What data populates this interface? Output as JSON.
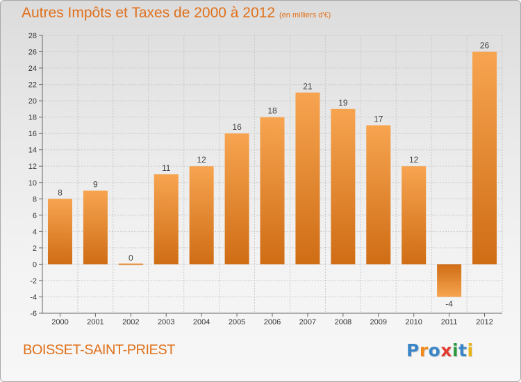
{
  "title": "Autres Impôts et Taxes de 2000 à 2012",
  "subtitle": "(en milliers d'€)",
  "commune": "BOISSET-SAINT-PRIEST",
  "logo_text": "Proxiti",
  "colors": {
    "accent": "#e0701a",
    "bar_light": "#f7a450",
    "bar_dark": "#cf6d15",
    "grid": "#c8c8c8",
    "logo_letters": [
      "#3b86c6",
      "#f08a1c",
      "#3b86c6",
      "#e33b2e",
      "#2c9a3f",
      "#3b86c6",
      "#e8b417"
    ]
  },
  "chart_data": {
    "type": "bar",
    "categories": [
      "2000",
      "2001",
      "2002",
      "2003",
      "2004",
      "2005",
      "2006",
      "2007",
      "2008",
      "2009",
      "2010",
      "2011",
      "2012"
    ],
    "values": [
      8,
      9,
      0,
      11,
      12,
      16,
      18,
      21,
      19,
      17,
      12,
      -4,
      26
    ],
    "value_labels": [
      "8",
      "9",
      "0",
      "11",
      "12",
      "16",
      "18",
      "21",
      "19",
      "17",
      "12",
      "-4",
      "26"
    ],
    "ylim": [
      -6,
      28
    ],
    "yticks": [
      -6,
      -4,
      -2,
      0,
      2,
      4,
      6,
      8,
      10,
      12,
      14,
      16,
      18,
      20,
      22,
      24,
      26,
      28
    ],
    "grid": true,
    "title": "Autres Impôts et Taxes de 2000 à 2012",
    "xlabel": "",
    "ylabel": ""
  }
}
